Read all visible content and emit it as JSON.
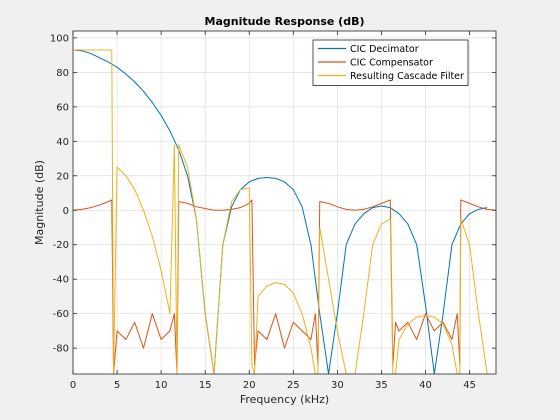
{
  "chart_data": {
    "type": "line",
    "title": "Magnitude Response (dB)",
    "xlabel": "Frequency (kHz)",
    "ylabel": "Magnitude (dB)",
    "xlim": [
      0,
      48
    ],
    "ylim": [
      -95,
      104
    ],
    "xticks": [
      0,
      5,
      10,
      15,
      20,
      25,
      30,
      35,
      40,
      45
    ],
    "yticks": [
      100,
      80,
      60,
      40,
      20,
      0,
      -20,
      -40,
      -60,
      -80
    ],
    "grid": true,
    "legend_position": "top-right",
    "series": [
      {
        "name": "CIC Decimator",
        "color": "#0072bd",
        "x": [
          0,
          1,
          2,
          3,
          4,
          5,
          6,
          7,
          8,
          9,
          10,
          11,
          12,
          13,
          14,
          15,
          16,
          17,
          18,
          19,
          20,
          21,
          22,
          23,
          24,
          25,
          26,
          27,
          28,
          29,
          30,
          31,
          32,
          33,
          34,
          35,
          36,
          37,
          38,
          39,
          40,
          41,
          42,
          43,
          44,
          45,
          46,
          47
        ],
        "y": [
          93,
          92.5,
          91,
          88.5,
          86,
          83,
          79,
          74.5,
          69,
          62.5,
          55,
          46,
          35,
          20,
          -5,
          -60,
          -95,
          -20,
          2,
          12,
          16.5,
          18.5,
          19,
          18.5,
          16.5,
          12,
          2,
          -20,
          -60,
          -95,
          -60,
          -20,
          -8,
          -2,
          1.5,
          2.5,
          1.5,
          -2,
          -8,
          -20,
          -55,
          -95,
          -60,
          -20,
          -8,
          -2,
          0.5,
          1.5
        ]
      },
      {
        "name": "CIC Compensator",
        "color": "#d95319",
        "x": [
          0,
          1,
          2,
          3,
          4,
          4.4,
          4.6,
          5,
          6,
          7,
          8,
          9,
          10,
          11,
          11.5,
          11.8,
          12,
          13,
          14,
          15,
          16,
          17,
          18,
          19,
          20,
          20.3,
          20.6,
          21,
          22,
          23,
          24,
          25,
          26,
          27,
          27.5,
          27.8,
          28,
          29,
          30,
          31,
          32,
          33,
          34,
          35,
          36,
          36.3,
          36.6,
          37,
          38,
          39,
          40,
          41,
          42,
          43,
          43.6,
          43.9,
          44,
          45,
          46,
          47,
          48
        ],
        "y": [
          0,
          0.5,
          1.5,
          3,
          5,
          6,
          -95,
          -70,
          -75,
          -65,
          -80,
          -60,
          -75,
          -70,
          -60,
          -95,
          5,
          4,
          2,
          1,
          0,
          0,
          0.5,
          1.5,
          4,
          6,
          -90,
          -70,
          -75,
          -60,
          -80,
          -65,
          -70,
          -75,
          -60,
          -90,
          5,
          4,
          2,
          0.5,
          0,
          0.5,
          2,
          4,
          6,
          -90,
          -65,
          -70,
          -65,
          -75,
          -60,
          -70,
          -65,
          -75,
          -60,
          -90,
          6,
          4,
          2,
          0.5,
          0
        ]
      },
      {
        "name": "Resulting Cascade Filter",
        "color": "#edb120",
        "x": [
          0,
          1,
          2,
          3,
          4,
          4.4,
          4.6,
          5,
          6,
          7,
          8,
          9,
          10,
          11,
          11.5,
          11.8,
          12,
          13,
          14,
          15,
          16,
          17,
          18,
          19,
          20,
          20.3,
          20.6,
          21,
          22,
          23,
          24,
          25,
          26,
          27,
          27.5,
          27.8,
          28,
          29,
          30,
          31,
          32,
          33,
          34,
          35,
          36,
          36.3,
          36.6,
          37,
          38,
          39,
          40,
          41,
          42,
          43,
          43.6,
          43.9,
          44,
          45,
          46,
          47
        ],
        "y": [
          93,
          93,
          93,
          93,
          93,
          93,
          -95,
          25,
          20,
          12,
          0,
          -15,
          -35,
          -60,
          38,
          -95,
          38,
          25,
          -5,
          -60,
          -95,
          -20,
          5,
          12,
          13,
          -90,
          -95,
          -50,
          -44,
          -42,
          -43,
          -48,
          -60,
          -80,
          -95,
          -95,
          -10,
          -40,
          -70,
          -95,
          -95,
          -60,
          -20,
          -8,
          -5,
          -95,
          -95,
          -75,
          -66,
          -62,
          -61,
          -62,
          -66,
          -78,
          -95,
          -95,
          -5,
          -20,
          -60,
          -95
        ]
      }
    ]
  }
}
